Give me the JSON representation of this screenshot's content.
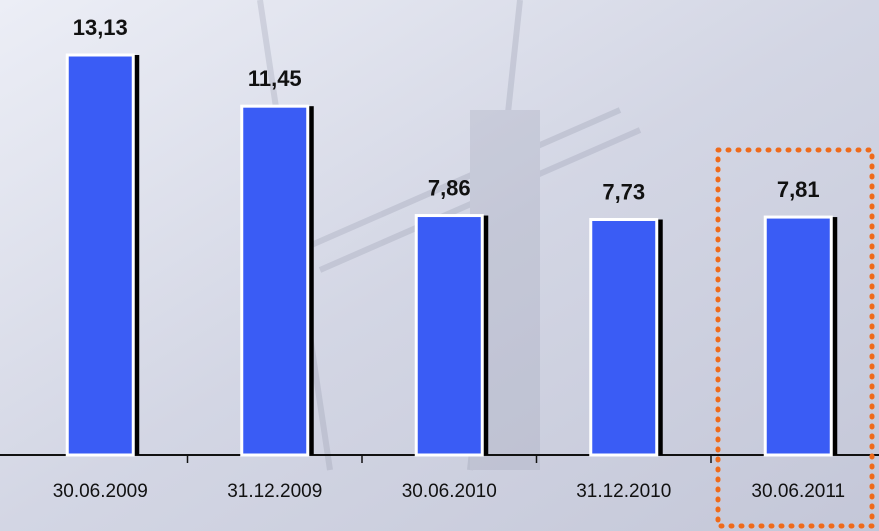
{
  "chart_data": {
    "type": "bar",
    "categories": [
      "30.06.2009",
      "31.12.2009",
      "30.06.2010",
      "31.12.2010",
      "30.06.2011"
    ],
    "values": [
      13.13,
      11.45,
      7.86,
      7.73,
      7.81
    ],
    "value_labels": [
      "13,13",
      "11,45",
      "7,86",
      "7,73",
      "7,81"
    ],
    "color": "#3a5cf5"
  }
}
